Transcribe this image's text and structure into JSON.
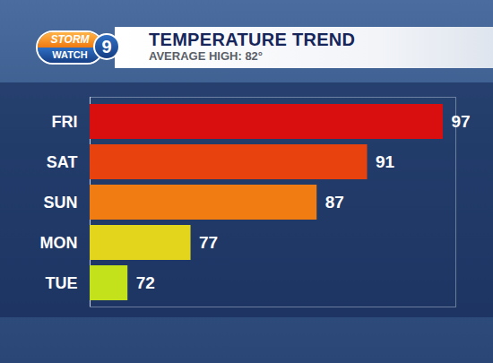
{
  "chart_data": {
    "type": "bar",
    "orientation": "horizontal",
    "title": "TEMPERATURE TREND",
    "subtitle": "AVERAGE HIGH: 82°",
    "categories": [
      "FRI",
      "SAT",
      "SUN",
      "MON",
      "TUE"
    ],
    "values": [
      97,
      91,
      87,
      77,
      72
    ],
    "colors": [
      "#d90f0f",
      "#e8420f",
      "#f17d12",
      "#e3d51c",
      "#c4e21c"
    ],
    "xlim": [
      69,
      98
    ],
    "data_labels": true,
    "tick_labels": "y",
    "grid": false
  },
  "logo": {
    "line1": "STORM",
    "line2": "WATCH",
    "number": "9"
  }
}
